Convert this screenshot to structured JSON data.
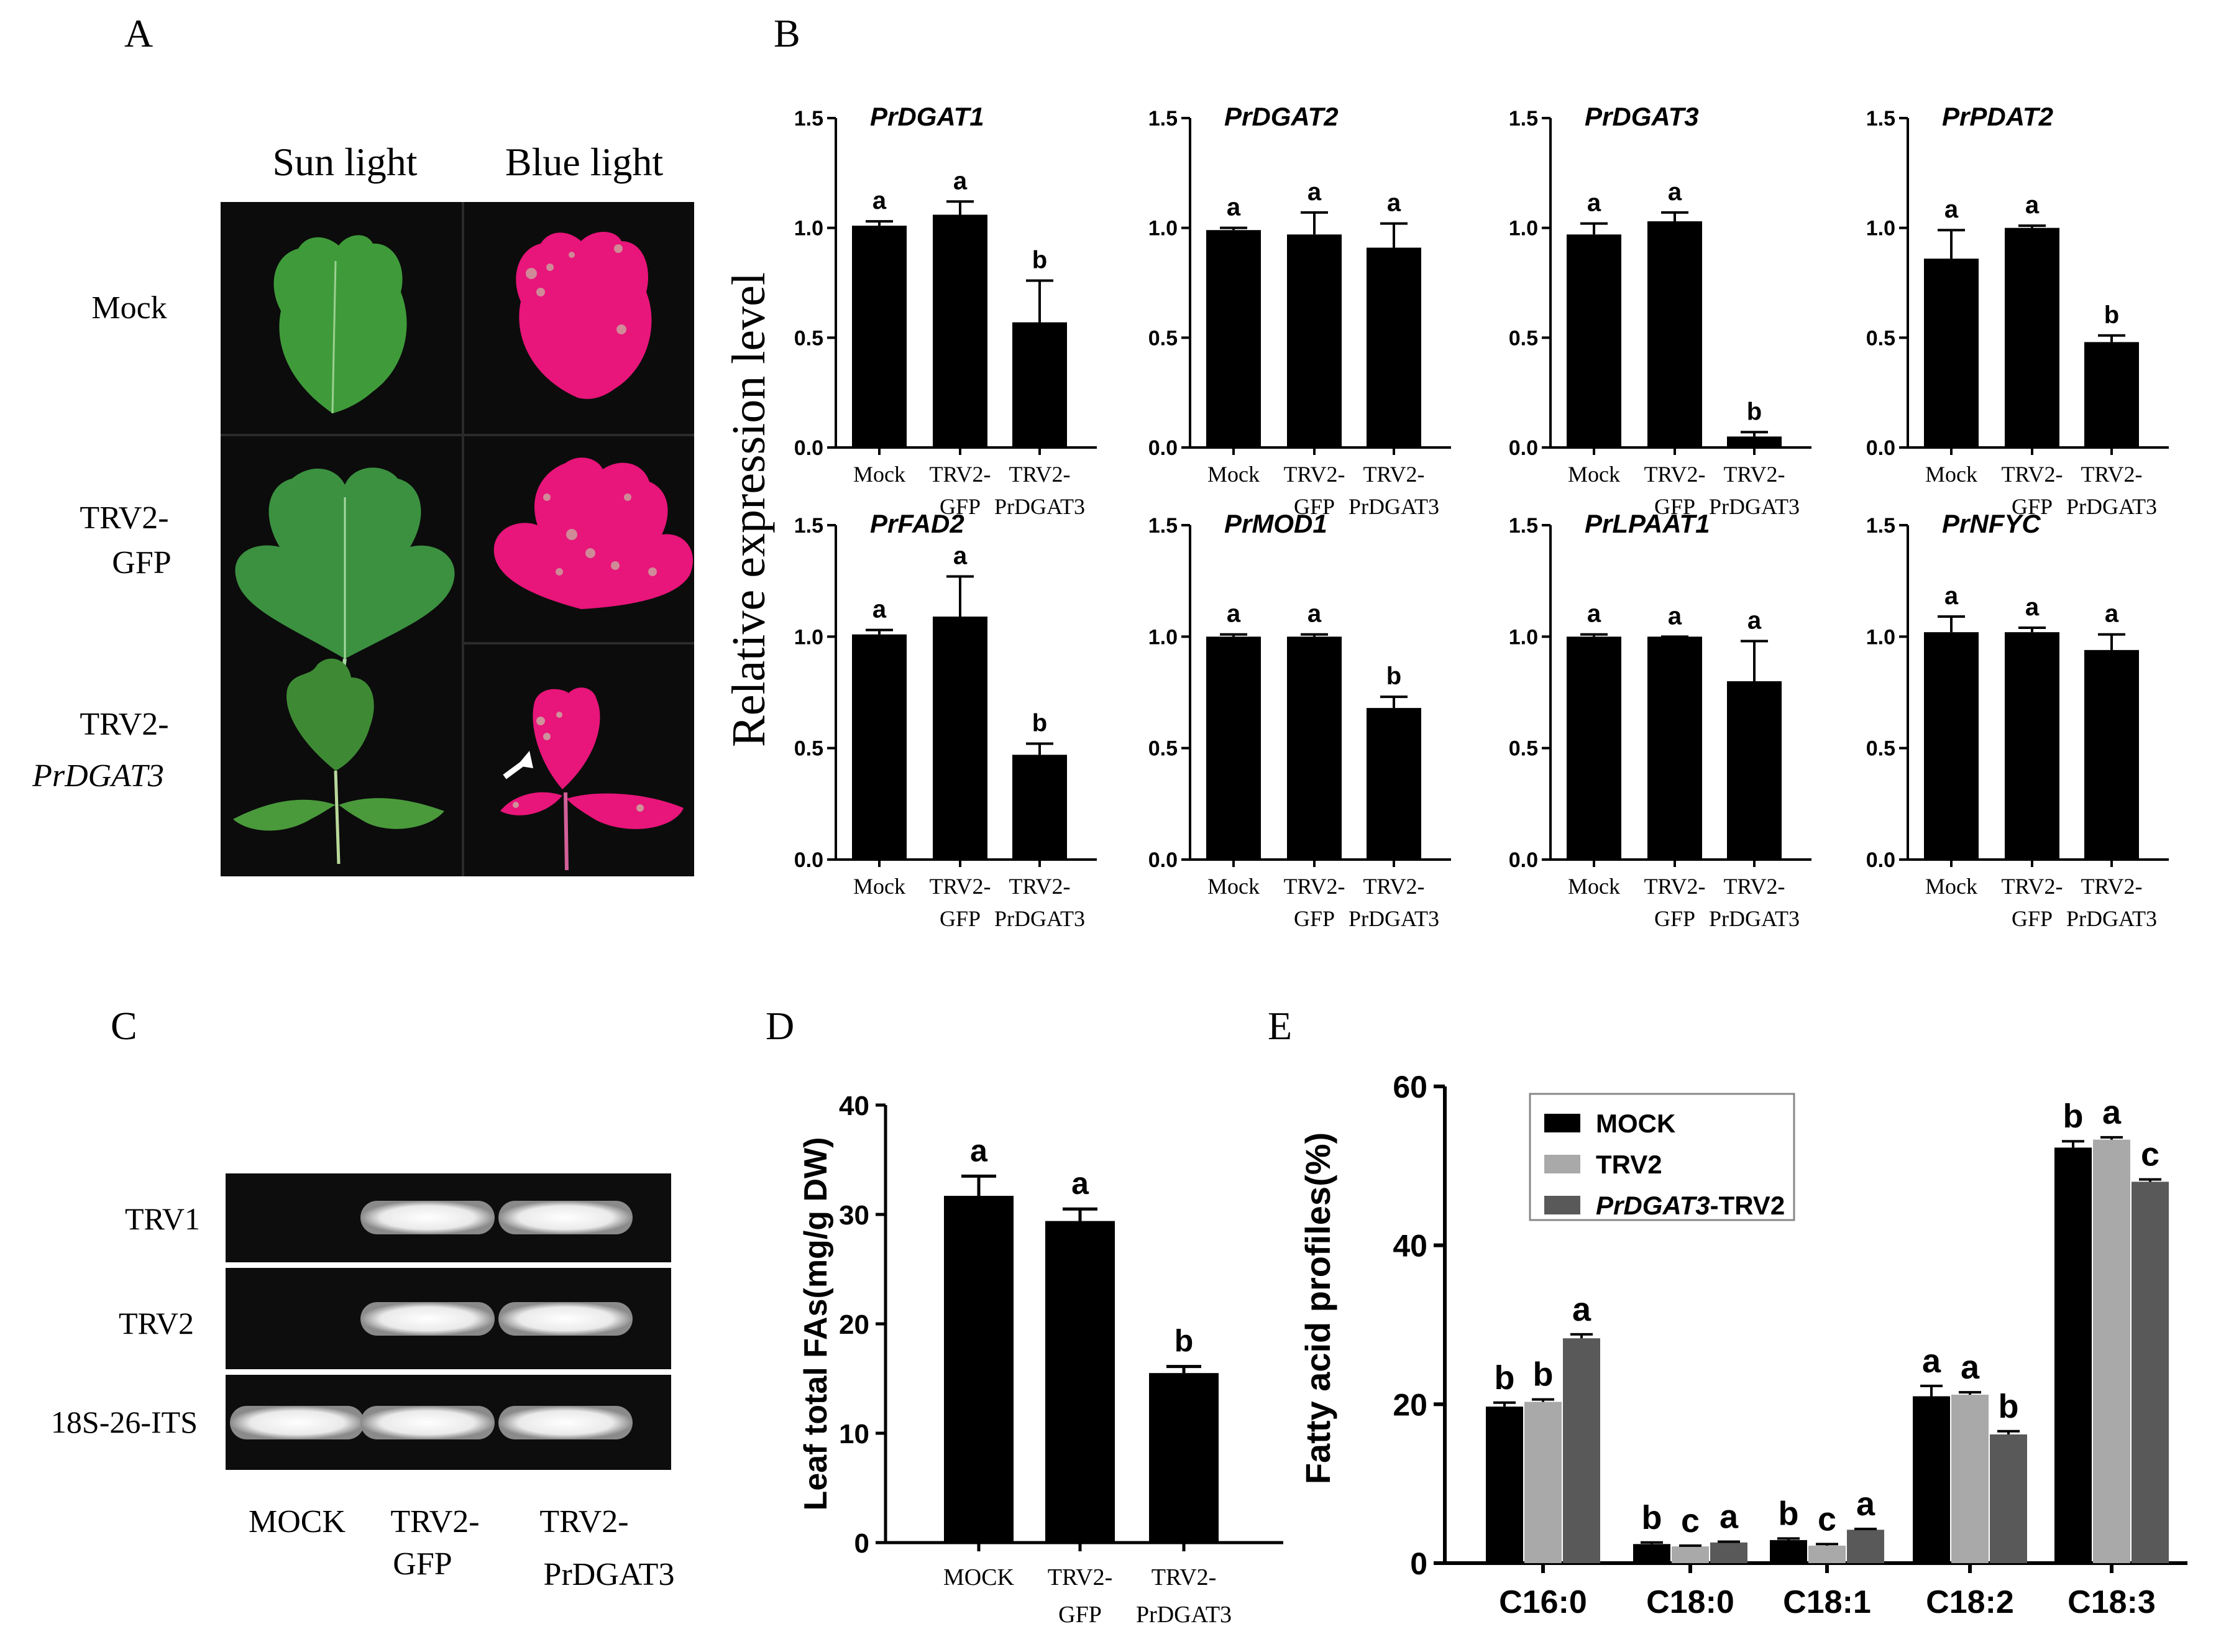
{
  "panels": {
    "A": {
      "letter": "A",
      "columns": [
        "Sun light",
        "Blue light"
      ],
      "rows": [
        {
          "line1": "Mock",
          "line2": ""
        },
        {
          "line1": "TRV2-",
          "line2": "GFP"
        },
        {
          "line1": "TRV2-",
          "line2": "PrDGAT3"
        }
      ],
      "colors": {
        "leaf_green": "#3f9b3a",
        "leaf_magenta": "#e8157a",
        "background": "#0c0c0c"
      }
    },
    "B": {
      "letter": "B",
      "ylabel": "Relative expression level"
    },
    "C": {
      "letter": "C",
      "row_labels": [
        "TRV1",
        "TRV2",
        "18S-26-ITS"
      ],
      "lane_labels": [
        {
          "line1": "MOCK",
          "line2": ""
        },
        {
          "line1": "TRV2-",
          "line2": "GFP"
        },
        {
          "line1": "TRV2-",
          "line2": "PrDGAT3"
        }
      ],
      "bands": [
        [
          0,
          1,
          1
        ],
        [
          0,
          1,
          1
        ],
        [
          1,
          1,
          1
        ]
      ]
    },
    "D": {
      "letter": "D"
    },
    "E": {
      "letter": "E"
    }
  },
  "chart_data": [
    {
      "panel": "B",
      "type": "bar",
      "title": "PrDGAT1",
      "ylim": [
        0,
        1.5
      ],
      "yticks": [
        "0.0",
        "0.5",
        "1.0",
        "1.5"
      ],
      "categories": [
        "Mock",
        "TRV2-GFP",
        "TRV2-PrDGAT3"
      ],
      "values": [
        1.01,
        1.06,
        0.57
      ],
      "errors": [
        0.02,
        0.06,
        0.19
      ],
      "letters": [
        "a",
        "a",
        "b"
      ]
    },
    {
      "panel": "B",
      "type": "bar",
      "title": "PrDGAT2",
      "ylim": [
        0,
        1.5
      ],
      "yticks": [
        "0.0",
        "0.5",
        "1.0",
        "1.5"
      ],
      "categories": [
        "Mock",
        "TRV2-GFP",
        "TRV2-PrDGAT3"
      ],
      "values": [
        0.99,
        0.97,
        0.91
      ],
      "errors": [
        0.01,
        0.1,
        0.11
      ],
      "letters": [
        "a",
        "a",
        "a"
      ]
    },
    {
      "panel": "B",
      "type": "bar",
      "title": "PrDGAT3",
      "ylim": [
        0,
        1.5
      ],
      "yticks": [
        "0.0",
        "0.5",
        "1.0",
        "1.5"
      ],
      "categories": [
        "Mock",
        "TRV2-GFP",
        "TRV2-PrDGAT3"
      ],
      "values": [
        0.97,
        1.03,
        0.05
      ],
      "errors": [
        0.05,
        0.04,
        0.02
      ],
      "letters": [
        "a",
        "a",
        "b"
      ]
    },
    {
      "panel": "B",
      "type": "bar",
      "title": "PrPDAT2",
      "ylim": [
        0,
        1.5
      ],
      "yticks": [
        "0.0",
        "0.5",
        "1.0",
        "1.5"
      ],
      "categories": [
        "Mock",
        "TRV2-GFP",
        "TRV2-PrDGAT3"
      ],
      "values": [
        0.86,
        1.0,
        0.48
      ],
      "errors": [
        0.13,
        0.01,
        0.03
      ],
      "letters": [
        "a",
        "a",
        "b"
      ]
    },
    {
      "panel": "B",
      "type": "bar",
      "title": "PrFAD2",
      "ylim": [
        0,
        1.5
      ],
      "yticks": [
        "0.0",
        "0.5",
        "1.0",
        "1.5"
      ],
      "categories": [
        "Mock",
        "TRV2-GFP",
        "TRV2-PrDGAT3"
      ],
      "values": [
        1.01,
        1.09,
        0.47
      ],
      "errors": [
        0.02,
        0.18,
        0.05
      ],
      "letters": [
        "a",
        "a",
        "b"
      ]
    },
    {
      "panel": "B",
      "type": "bar",
      "title": "PrMOD1",
      "ylim": [
        0,
        1.5
      ],
      "yticks": [
        "0.0",
        "0.5",
        "1.0",
        "1.5"
      ],
      "categories": [
        "Mock",
        "TRV2-GFP",
        "TRV2-PrDGAT3"
      ],
      "values": [
        1.0,
        1.0,
        0.68
      ],
      "errors": [
        0.01,
        0.01,
        0.05
      ],
      "letters": [
        "a",
        "a",
        "b"
      ]
    },
    {
      "panel": "B",
      "type": "bar",
      "title": "PrLPAAT1",
      "ylim": [
        0,
        1.5
      ],
      "yticks": [
        "0.0",
        "0.5",
        "1.0",
        "1.5"
      ],
      "categories": [
        "Mock",
        "TRV2-GFP",
        "TRV2-PrDGAT3"
      ],
      "values": [
        1.0,
        1.0,
        0.8
      ],
      "errors": [
        0.01,
        0.0,
        0.18
      ],
      "letters": [
        "a",
        "a",
        "a"
      ]
    },
    {
      "panel": "B",
      "type": "bar",
      "title": "PrNFYC",
      "ylim": [
        0,
        1.5
      ],
      "yticks": [
        "0.0",
        "0.5",
        "1.0",
        "1.5"
      ],
      "categories": [
        "Mock",
        "TRV2-GFP",
        "TRV2-PrDGAT3"
      ],
      "values": [
        1.02,
        1.02,
        0.94
      ],
      "errors": [
        0.07,
        0.02,
        0.07
      ],
      "letters": [
        "a",
        "a",
        "a"
      ]
    },
    {
      "panel": "D",
      "type": "bar",
      "ylabel": "Leaf total FAs(mg/g DW)",
      "ylim": [
        0,
        40
      ],
      "yticks": [
        "0",
        "10",
        "20",
        "30",
        "40"
      ],
      "categories": [
        "MOCK",
        "TRV2-GFP",
        "TRV2-PrDGAT3"
      ],
      "values": [
        31.7,
        29.4,
        15.5
      ],
      "errors": [
        1.8,
        1.1,
        0.6
      ],
      "letters": [
        "a",
        "a",
        "b"
      ]
    },
    {
      "panel": "E",
      "type": "bar",
      "ylabel": "Fatty acid profiles(%)",
      "ylim": [
        0,
        60
      ],
      "yticks": [
        "0",
        "20",
        "40",
        "60"
      ],
      "categories": [
        "C16:0",
        "C18:0",
        "C18:1",
        "C18:2",
        "C18:3"
      ],
      "legend_position": "top-left",
      "series": [
        {
          "name": "MOCK",
          "color": "#000000",
          "values": [
            19.7,
            2.4,
            2.9,
            21.0,
            52.3
          ],
          "errors": [
            0.5,
            0.2,
            0.2,
            1.3,
            0.8
          ],
          "letters": [
            "b",
            "b",
            "b",
            "a",
            "b"
          ]
        },
        {
          "name": "TRV2",
          "color": "#a9a9a9",
          "values": [
            20.3,
            2.1,
            2.2,
            21.2,
            53.3
          ],
          "errors": [
            0.3,
            0.1,
            0.2,
            0.3,
            0.3
          ],
          "letters": [
            "b",
            "c",
            "c",
            "a",
            "a"
          ]
        },
        {
          "name": "PrDGAT3-TRV2",
          "color": "#595959",
          "values": [
            28.3,
            2.6,
            4.2,
            16.2,
            48.0
          ],
          "errors": [
            0.5,
            0.1,
            0.1,
            0.4,
            0.3
          ],
          "letters": [
            "a",
            "a",
            "a",
            "b",
            "c"
          ]
        }
      ]
    }
  ]
}
